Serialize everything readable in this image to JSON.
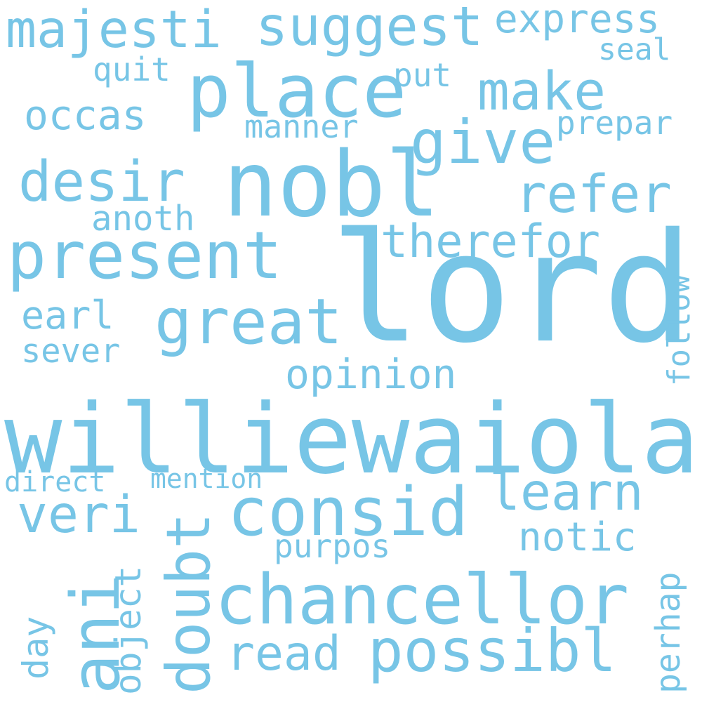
{
  "cloud": {
    "color": "#77c5e6",
    "background": "#ffffff",
    "words": {
      "lord": "lord",
      "williewaiola": "williewaiola",
      "nobl": "nobl",
      "chancellor": "chancellor",
      "present": "present",
      "place": "place",
      "consid": "consid",
      "ani": "ani",
      "possibl": "possibl",
      "great": "great",
      "give": "give",
      "desir": "desir",
      "suggest": "suggest",
      "majesti": "majesti",
      "make": "make",
      "refer": "refer",
      "veri": "veri",
      "learn": "learn",
      "doubt": "doubt",
      "therefor": "therefor",
      "read": "read",
      "express": "express",
      "opinion": "opinion",
      "occas": "occas",
      "notic": "notic",
      "purpos": "purpos",
      "object": "object",
      "earl": "earl",
      "sever": "sever",
      "anoth": "anoth",
      "follow": "follow",
      "perhap": "perhap",
      "quit": "quit",
      "manner": "manner",
      "prepar": "prepar",
      "put": "put",
      "seal": "seal",
      "day": "day",
      "direct": "direct",
      "mention": "mention"
    }
  }
}
